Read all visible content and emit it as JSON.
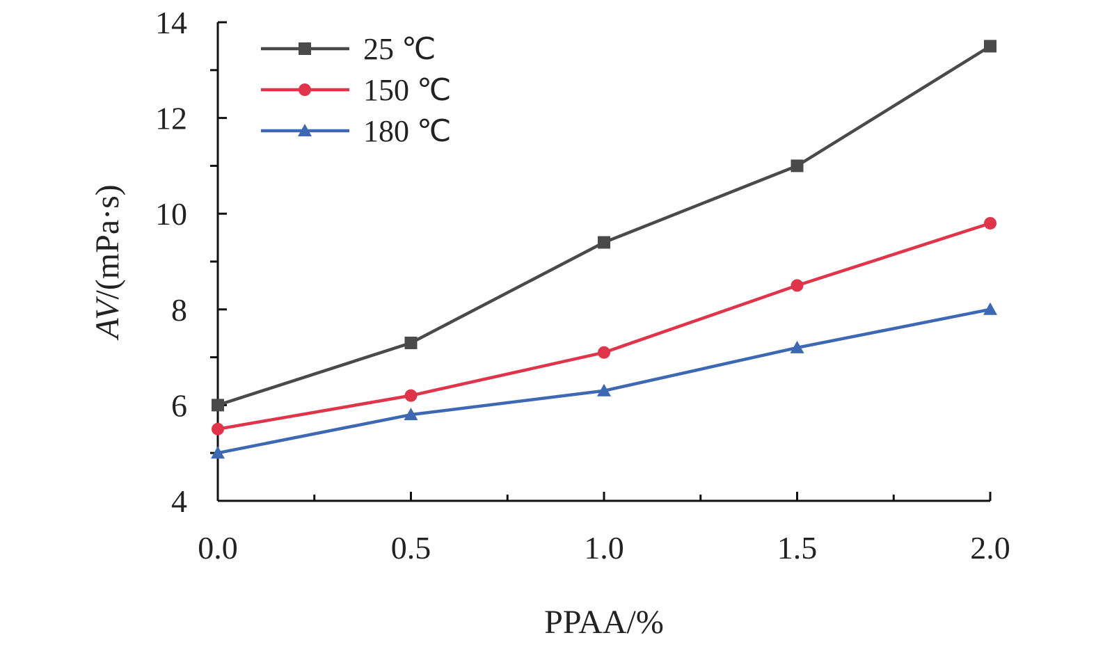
{
  "chart_data": {
    "type": "line",
    "xlabel": "PPAA/%",
    "ylabel_italic": "AV",
    "ylabel_rest": "/(mPa·s)",
    "x": [
      0.0,
      0.5,
      1.0,
      1.5,
      2.0
    ],
    "x_tick_labels": [
      "0.0",
      "0.5",
      "1.0",
      "1.5",
      "2.0"
    ],
    "y_tick_labels": [
      "4",
      "6",
      "8",
      "10",
      "12",
      "14"
    ],
    "xlim": [
      0.0,
      2.0
    ],
    "ylim": [
      4,
      14
    ],
    "grid": false,
    "legend_position": "top-left",
    "series": [
      {
        "name": "25 ℃",
        "color": "#4a4a4a",
        "marker": "square",
        "values": [
          6.0,
          7.3,
          9.4,
          11.0,
          13.5
        ]
      },
      {
        "name": "150 ℃",
        "color": "#e0344b",
        "marker": "circle",
        "values": [
          5.5,
          6.2,
          7.1,
          8.5,
          9.8
        ]
      },
      {
        "name": "180 ℃",
        "color": "#3c68b4",
        "marker": "triangle",
        "values": [
          5.0,
          5.8,
          6.3,
          7.2,
          8.0
        ]
      }
    ]
  }
}
